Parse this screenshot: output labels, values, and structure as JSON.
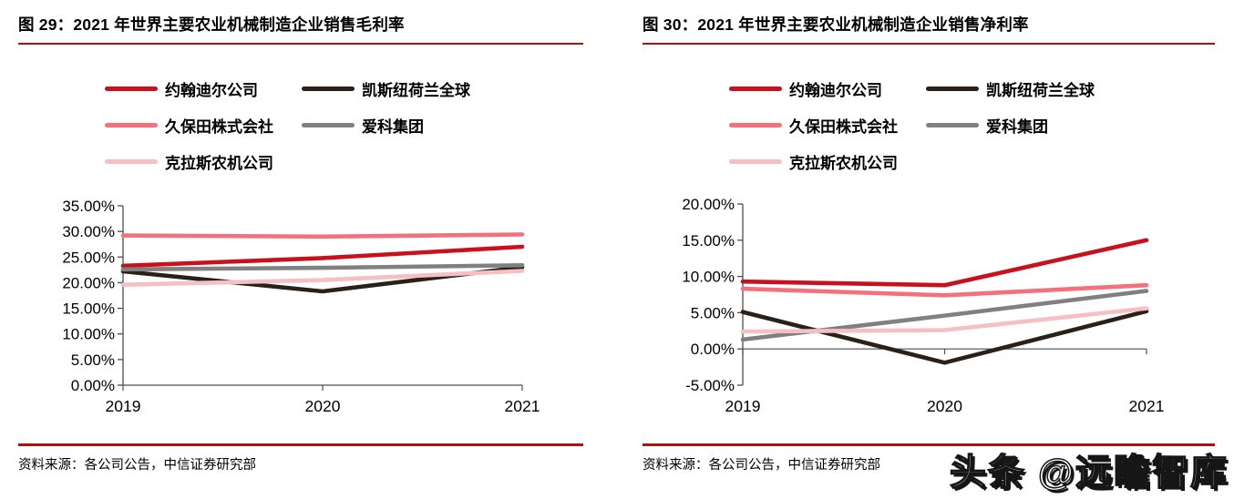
{
  "watermark": "头条 @远瞻智库",
  "accent": {
    "rule_red": "#B70D0D",
    "axis_color": "#4d4d4d",
    "text_color": "#000000"
  },
  "figures": [
    {
      "title": "图 29：2021 年世界主要农业机械制造企业销售毛利率",
      "source": "资料来源：各公司公告，中信证券研究部",
      "chart_data": {
        "type": "line",
        "title": "2021 年世界主要农业机械制造企业销售毛利率",
        "x": [
          "2019",
          "2020",
          "2021"
        ],
        "series": [
          {
            "name": "约翰迪尔公司",
            "color": "#C9101B",
            "values": [
              23.3,
              24.8,
              27.0
            ]
          },
          {
            "name": "凯斯纽荷兰全球",
            "color": "#282019",
            "values": [
              22.2,
              18.3,
              23.0
            ]
          },
          {
            "name": "久保田株式会社",
            "color": "#F4707B",
            "values": [
              29.2,
              29.0,
              29.4
            ]
          },
          {
            "name": "爱科集团",
            "color": "#808080",
            "values": [
              22.6,
              22.9,
              23.4
            ]
          },
          {
            "name": "克拉斯农机公司",
            "color": "#F5BFC3",
            "values": [
              19.6,
              20.5,
              22.3
            ]
          }
        ],
        "ylim": [
          0,
          35
        ],
        "yticks": [
          35,
          30,
          25,
          20,
          15,
          10,
          5,
          0
        ],
        "ytick_labels": [
          "35.00%",
          "30.00%",
          "25.00%",
          "20.00%",
          "15.00%",
          "10.00%",
          "5.00%",
          "0.00%"
        ],
        "axis_baseline": 0,
        "grid": false,
        "legend_position": "top",
        "xlabel": "",
        "ylabel": ""
      }
    },
    {
      "title": "图 30：2021 年世界主要农业机械制造企业销售净利率",
      "source": "资料来源：各公司公告，中信证券研究部",
      "chart_data": {
        "type": "line",
        "title": "2021 年世界主要农业机械制造企业销售净利率",
        "x": [
          "2019",
          "2020",
          "2021"
        ],
        "series": [
          {
            "name": "约翰迪尔公司",
            "color": "#C9101B",
            "values": [
              9.3,
              8.8,
              15.0
            ]
          },
          {
            "name": "凯斯纽荷兰全球",
            "color": "#282019",
            "values": [
              5.1,
              -1.9,
              5.2
            ]
          },
          {
            "name": "久保田株式会社",
            "color": "#F4707B",
            "values": [
              8.3,
              7.4,
              8.8
            ]
          },
          {
            "name": "爱科集团",
            "color": "#808080",
            "values": [
              1.3,
              4.6,
              8.0
            ]
          },
          {
            "name": "克拉斯农机公司",
            "color": "#F5BFC3",
            "values": [
              2.4,
              2.6,
              5.6
            ]
          }
        ],
        "ylim": [
          -5,
          20
        ],
        "yticks": [
          20,
          15,
          10,
          5,
          0,
          -5
        ],
        "ytick_labels": [
          "20.00%",
          "15.00%",
          "10.00%",
          "5.00%",
          "0.00%",
          "-5.00%"
        ],
        "axis_baseline": 0,
        "grid": false,
        "legend_position": "top",
        "xlabel": "",
        "ylabel": ""
      }
    }
  ]
}
